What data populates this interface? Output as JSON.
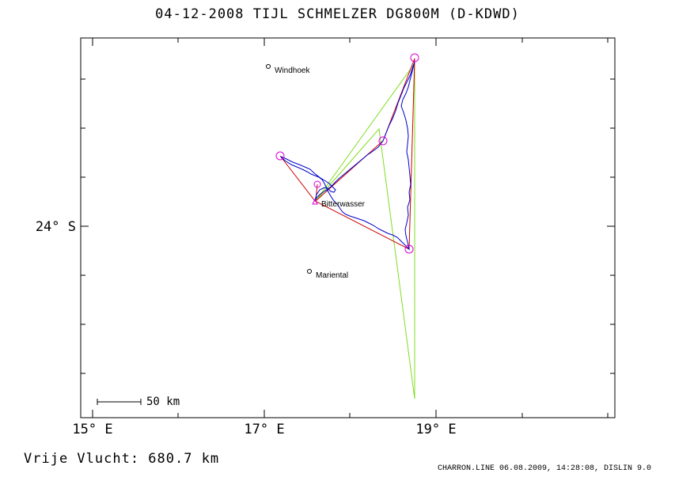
{
  "title": "04-12-2008   TIJL SCHMELZER   DG800M (D-KDWD)",
  "axes": {
    "x_ticks": [
      "15° E",
      "17° E",
      "19° E"
    ],
    "y_ticks": [
      "24° S"
    ]
  },
  "places": [
    {
      "name": "Windhoek"
    },
    {
      "name": "Bitterwasser"
    },
    {
      "name": "Mariental"
    }
  ],
  "scale": {
    "label": "50 km"
  },
  "footer": {
    "flight": "Vrije Vlucht:  680.7 km",
    "credit": "CHARRON.LINE 06.08.2009, 14:28:08, DISLIN 9.0"
  },
  "colors": {
    "track": "#0000cc",
    "task": "#cc0000",
    "triangle": "#80dd20",
    "turnpoint": "#dd00dd",
    "frame": "#000000"
  }
}
